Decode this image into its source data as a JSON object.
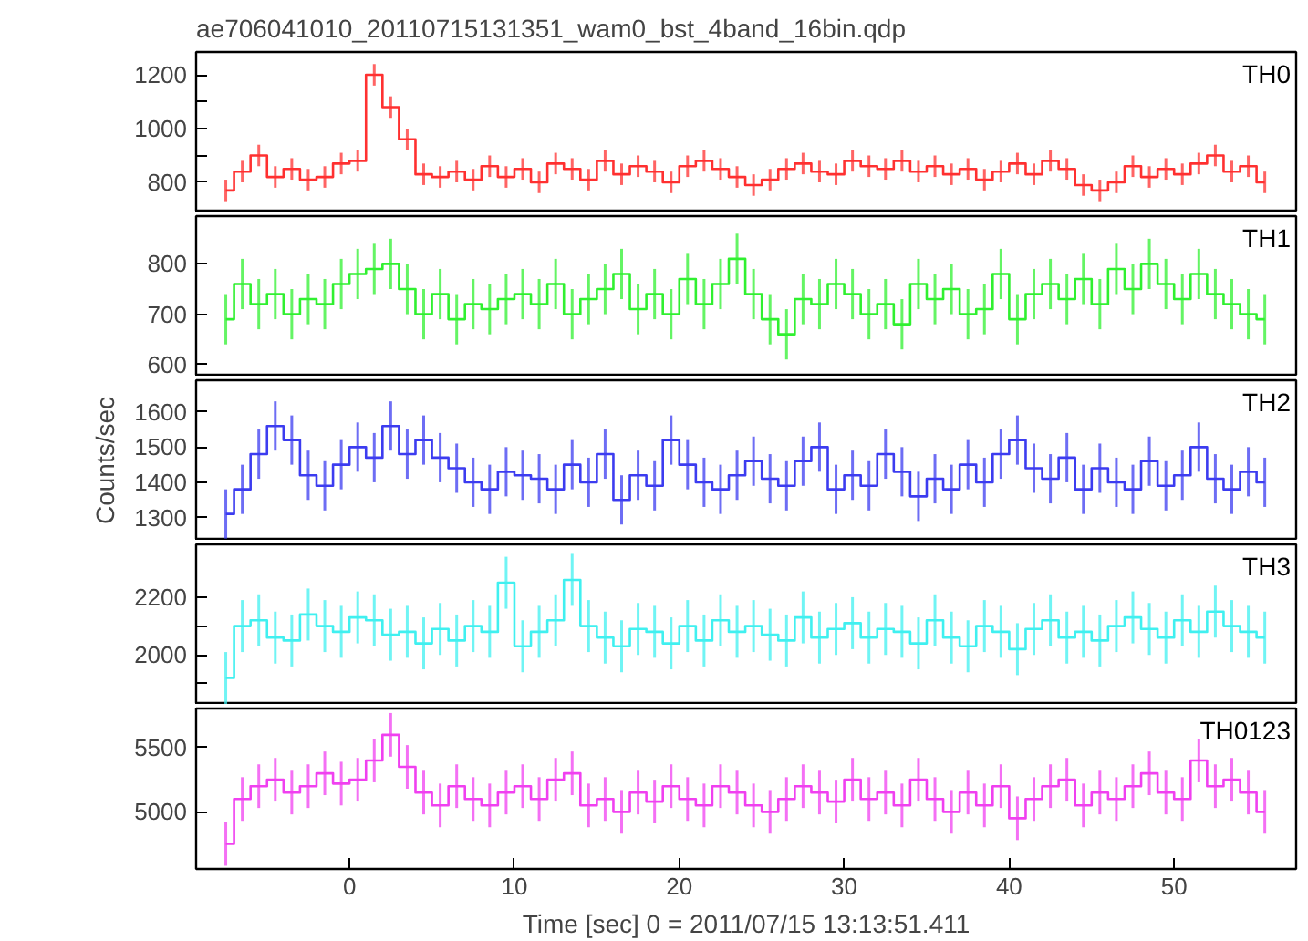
{
  "chart_data": [
    {
      "type": "step",
      "title": "ae706041010_20110715131351_wam0_bst_4band_16bin.qdp",
      "tick_labels": "y",
      "xlim": [
        -9.3,
        57.4
      ],
      "ylim": [
        688,
        1285
      ],
      "yticks": [
        800,
        {
          "value": 900,
          "label": null
        },
        1000,
        {
          "value": 1100,
          "label": null
        },
        1200
      ],
      "x": [
        -7.5,
        -6.5,
        -5.5,
        -4.5,
        -3.5,
        -2.5,
        -1.5,
        -0.5,
        0.5,
        1.5,
        2.5,
        3.5,
        4.5,
        5.5,
        6.5,
        7.5,
        8.5,
        9.5,
        10.5,
        11.5,
        12.5,
        13.5,
        14.5,
        15.5,
        16.5,
        17.5,
        18.5,
        19.5,
        20.5,
        21.5,
        22.5,
        23.5,
        24.5,
        25.5,
        26.5,
        27.5,
        28.5,
        29.5,
        30.5,
        31.5,
        32.5,
        33.5,
        34.5,
        35.5,
        36.5,
        37.5,
        38.5,
        39.5,
        40.5,
        41.5,
        42.5,
        43.5,
        44.5,
        45.5,
        46.5,
        47.5,
        48.5,
        49.5,
        50.5,
        51.5,
        52.5,
        53.5,
        54.5,
        55.5
      ],
      "series": [
        {
          "name": "TH0",
          "color": "#ff3030",
          "errors": [
            40,
            40,
            40,
            40,
            40,
            40,
            40,
            40,
            40,
            40,
            40,
            40,
            40,
            40,
            40,
            40,
            40,
            40,
            40,
            40,
            40,
            40,
            40,
            40,
            40,
            40,
            40,
            40,
            40,
            40,
            40,
            40,
            40,
            40,
            40,
            40,
            40,
            40,
            40,
            40,
            40,
            40,
            40,
            40,
            40,
            40,
            40,
            40,
            40,
            40,
            40,
            40,
            40,
            40,
            40,
            40,
            40,
            40,
            40,
            40,
            40,
            40,
            40,
            40
          ],
          "values": [
            770,
            840,
            900,
            820,
            850,
            810,
            820,
            870,
            880,
            1200,
            1080,
            960,
            830,
            820,
            840,
            810,
            860,
            820,
            850,
            800,
            870,
            850,
            810,
            880,
            830,
            860,
            840,
            800,
            860,
            880,
            850,
            820,
            790,
            810,
            850,
            870,
            840,
            830,
            880,
            860,
            850,
            880,
            840,
            860,
            830,
            850,
            810,
            840,
            870,
            830,
            880,
            850,
            790,
            770,
            800,
            860,
            820,
            850,
            830,
            870,
            900,
            840,
            860,
            800
          ]
        }
      ]
    },
    {
      "type": "step",
      "tick_labels": "y",
      "xlim": [
        -9.3,
        57.4
      ],
      "ylim": [
        576,
        895
      ],
      "yticks": [
        600,
        700,
        800
      ],
      "x": [
        -7.5,
        -6.5,
        -5.5,
        -4.5,
        -3.5,
        -2.5,
        -1.5,
        -0.5,
        0.5,
        1.5,
        2.5,
        3.5,
        4.5,
        5.5,
        6.5,
        7.5,
        8.5,
        9.5,
        10.5,
        11.5,
        12.5,
        13.5,
        14.5,
        15.5,
        16.5,
        17.5,
        18.5,
        19.5,
        20.5,
        21.5,
        22.5,
        23.5,
        24.5,
        25.5,
        26.5,
        27.5,
        28.5,
        29.5,
        30.5,
        31.5,
        32.5,
        33.5,
        34.5,
        35.5,
        36.5,
        37.5,
        38.5,
        39.5,
        40.5,
        41.5,
        42.5,
        43.5,
        44.5,
        45.5,
        46.5,
        47.5,
        48.5,
        49.5,
        50.5,
        51.5,
        52.5,
        53.5,
        54.5,
        55.5
      ],
      "series": [
        {
          "name": "TH1",
          "color": "#30f030",
          "errors": [
            50,
            50,
            50,
            50,
            50,
            50,
            50,
            50,
            50,
            50,
            50,
            50,
            50,
            50,
            50,
            50,
            50,
            50,
            50,
            50,
            50,
            50,
            50,
            50,
            50,
            50,
            50,
            50,
            50,
            50,
            50,
            50,
            50,
            50,
            50,
            50,
            50,
            50,
            50,
            50,
            50,
            50,
            50,
            50,
            50,
            50,
            50,
            50,
            50,
            50,
            50,
            50,
            50,
            50,
            50,
            50,
            50,
            50,
            50,
            50,
            50,
            50,
            50,
            50
          ],
          "values": [
            690,
            760,
            720,
            740,
            700,
            730,
            720,
            760,
            780,
            790,
            800,
            750,
            700,
            740,
            690,
            720,
            710,
            730,
            740,
            720,
            760,
            700,
            730,
            750,
            780,
            710,
            740,
            700,
            770,
            720,
            760,
            810,
            740,
            690,
            660,
            730,
            720,
            760,
            740,
            700,
            720,
            680,
            760,
            730,
            750,
            700,
            710,
            780,
            690,
            740,
            760,
            730,
            770,
            720,
            790,
            750,
            800,
            760,
            730,
            780,
            740,
            720,
            700,
            690
          ]
        }
      ]
    },
    {
      "type": "step",
      "tick_labels": "y",
      "ylabel": "Counts/sec",
      "xlim": [
        -9.3,
        57.4
      ],
      "ylim": [
        1234,
        1690
      ],
      "yticks": [
        1300,
        1400,
        1500,
        1600
      ],
      "x": [
        -7.5,
        -6.5,
        -5.5,
        -4.5,
        -3.5,
        -2.5,
        -1.5,
        -0.5,
        0.5,
        1.5,
        2.5,
        3.5,
        4.5,
        5.5,
        6.5,
        7.5,
        8.5,
        9.5,
        10.5,
        11.5,
        12.5,
        13.5,
        14.5,
        15.5,
        16.5,
        17.5,
        18.5,
        19.5,
        20.5,
        21.5,
        22.5,
        23.5,
        24.5,
        25.5,
        26.5,
        27.5,
        28.5,
        29.5,
        30.5,
        31.5,
        32.5,
        33.5,
        34.5,
        35.5,
        36.5,
        37.5,
        38.5,
        39.5,
        40.5,
        41.5,
        42.5,
        43.5,
        44.5,
        45.5,
        46.5,
        47.5,
        48.5,
        49.5,
        50.5,
        51.5,
        52.5,
        53.5,
        54.5,
        55.5
      ],
      "series": [
        {
          "name": "TH2",
          "color": "#3c3cf0",
          "errors": [
            70,
            70,
            70,
            70,
            70,
            70,
            70,
            70,
            70,
            70,
            70,
            70,
            70,
            70,
            70,
            70,
            70,
            70,
            70,
            70,
            70,
            70,
            70,
            70,
            70,
            70,
            70,
            70,
            70,
            70,
            70,
            70,
            70,
            70,
            70,
            70,
            70,
            70,
            70,
            70,
            70,
            70,
            70,
            70,
            70,
            70,
            70,
            70,
            70,
            70,
            70,
            70,
            70,
            70,
            70,
            70,
            70,
            70,
            70,
            70,
            70,
            70,
            70,
            70
          ],
          "values": [
            1310,
            1380,
            1480,
            1560,
            1520,
            1420,
            1390,
            1450,
            1500,
            1470,
            1560,
            1480,
            1520,
            1470,
            1440,
            1400,
            1380,
            1430,
            1420,
            1410,
            1380,
            1450,
            1400,
            1480,
            1350,
            1420,
            1390,
            1520,
            1450,
            1400,
            1380,
            1420,
            1460,
            1410,
            1390,
            1460,
            1500,
            1380,
            1420,
            1390,
            1480,
            1430,
            1360,
            1410,
            1380,
            1450,
            1400,
            1480,
            1520,
            1440,
            1410,
            1470,
            1380,
            1440,
            1400,
            1380,
            1460,
            1390,
            1420,
            1500,
            1410,
            1380,
            1430,
            1400
          ]
        }
      ]
    },
    {
      "type": "step",
      "tick_labels": "y",
      "xlim": [
        -9.3,
        57.4
      ],
      "ylim": [
        1827,
        2383
      ],
      "yticks": [
        {
          "value": 1900,
          "label": null
        },
        2000,
        {
          "value": 2100,
          "label": null
        },
        2200
      ],
      "x": [
        -7.5,
        -6.5,
        -5.5,
        -4.5,
        -3.5,
        -2.5,
        -1.5,
        -0.5,
        0.5,
        1.5,
        2.5,
        3.5,
        4.5,
        5.5,
        6.5,
        7.5,
        8.5,
        9.5,
        10.5,
        11.5,
        12.5,
        13.5,
        14.5,
        15.5,
        16.5,
        17.5,
        18.5,
        19.5,
        20.5,
        21.5,
        22.5,
        23.5,
        24.5,
        25.5,
        26.5,
        27.5,
        28.5,
        29.5,
        30.5,
        31.5,
        32.5,
        33.5,
        34.5,
        35.5,
        36.5,
        37.5,
        38.5,
        39.5,
        40.5,
        41.5,
        42.5,
        43.5,
        44.5,
        45.5,
        46.5,
        47.5,
        48.5,
        49.5,
        50.5,
        51.5,
        52.5,
        53.5,
        54.5,
        55.5
      ],
      "series": [
        {
          "name": "TH3",
          "color": "#40f0f0",
          "errors": [
            90,
            90,
            90,
            90,
            90,
            90,
            90,
            90,
            90,
            90,
            90,
            90,
            90,
            90,
            90,
            90,
            90,
            90,
            90,
            90,
            90,
            90,
            90,
            90,
            90,
            90,
            90,
            90,
            90,
            90,
            90,
            90,
            90,
            90,
            90,
            90,
            90,
            90,
            90,
            90,
            90,
            90,
            90,
            90,
            90,
            90,
            90,
            90,
            90,
            90,
            90,
            90,
            90,
            90,
            90,
            90,
            90,
            90,
            90,
            90,
            90,
            90,
            90,
            90
          ],
          "values": [
            1920,
            2100,
            2120,
            2060,
            2050,
            2140,
            2100,
            2080,
            2130,
            2120,
            2070,
            2080,
            2040,
            2090,
            2050,
            2100,
            2080,
            2250,
            2030,
            2080,
            2120,
            2260,
            2100,
            2060,
            2030,
            2090,
            2080,
            2040,
            2100,
            2050,
            2120,
            2080,
            2100,
            2070,
            2050,
            2130,
            2060,
            2090,
            2110,
            2060,
            2090,
            2080,
            2040,
            2120,
            2060,
            2030,
            2100,
            2080,
            2020,
            2090,
            2120,
            2060,
            2080,
            2050,
            2100,
            2130,
            2090,
            2060,
            2120,
            2080,
            2150,
            2100,
            2080,
            2060
          ]
        }
      ]
    },
    {
      "type": "step",
      "xlabel": "Time [sec] 0 = 2011/07/15 13:13:51.411",
      "xlim": [
        -9.3,
        57.4
      ],
      "xticks": [
        0,
        10,
        20,
        30,
        40,
        50
      ],
      "ylim": [
        4555,
        5805
      ],
      "yticks": [
        5000,
        5500
      ],
      "x": [
        -7.5,
        -6.5,
        -5.5,
        -4.5,
        -3.5,
        -2.5,
        -1.5,
        -0.5,
        0.5,
        1.5,
        2.5,
        3.5,
        4.5,
        5.5,
        6.5,
        7.5,
        8.5,
        9.5,
        10.5,
        11.5,
        12.5,
        13.5,
        14.5,
        15.5,
        16.5,
        17.5,
        18.5,
        19.5,
        20.5,
        21.5,
        22.5,
        23.5,
        24.5,
        25.5,
        26.5,
        27.5,
        28.5,
        29.5,
        30.5,
        31.5,
        32.5,
        33.5,
        34.5,
        35.5,
        36.5,
        37.5,
        38.5,
        39.5,
        40.5,
        41.5,
        42.5,
        43.5,
        44.5,
        45.5,
        46.5,
        47.5,
        48.5,
        49.5,
        50.5,
        51.5,
        52.5,
        53.5,
        54.5,
        55.5
      ],
      "series": [
        {
          "name": "TH0123",
          "color": "#f040f0",
          "errors": [
            170,
            170,
            170,
            170,
            170,
            170,
            170,
            170,
            170,
            170,
            170,
            170,
            170,
            170,
            170,
            170,
            170,
            170,
            170,
            170,
            170,
            170,
            170,
            170,
            170,
            170,
            170,
            170,
            170,
            170,
            170,
            170,
            170,
            170,
            170,
            170,
            170,
            170,
            170,
            170,
            170,
            170,
            170,
            170,
            170,
            170,
            170,
            170,
            170,
            170,
            170,
            170,
            170,
            170,
            170,
            170,
            170,
            170,
            170,
            170,
            170,
            170,
            170,
            170
          ],
          "values": [
            4750,
            5100,
            5200,
            5250,
            5150,
            5200,
            5300,
            5220,
            5250,
            5400,
            5600,
            5350,
            5150,
            5050,
            5200,
            5100,
            5050,
            5150,
            5200,
            5100,
            5250,
            5300,
            5050,
            5100,
            5000,
            5150,
            5080,
            5200,
            5100,
            5050,
            5200,
            5150,
            5050,
            5000,
            5100,
            5200,
            5150,
            5080,
            5250,
            5100,
            5150,
            5050,
            5250,
            5100,
            5000,
            5150,
            5050,
            5200,
            4950,
            5100,
            5200,
            5250,
            5050,
            5150,
            5100,
            5200,
            5300,
            5150,
            5100,
            5400,
            5200,
            5250,
            5150,
            5000
          ]
        }
      ]
    }
  ]
}
